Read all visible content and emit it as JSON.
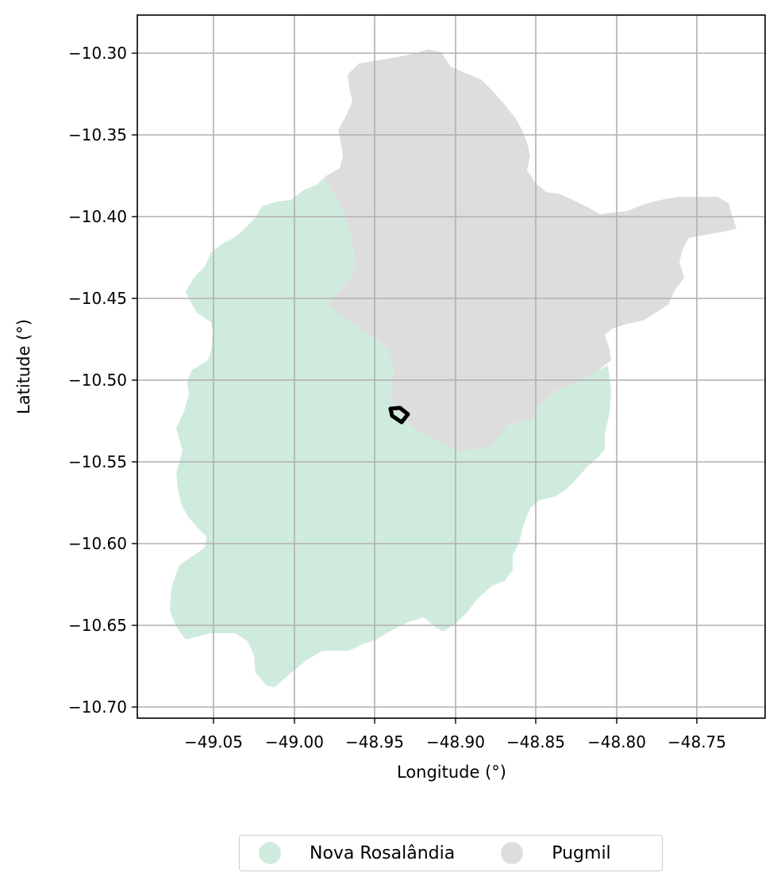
{
  "map": {
    "x_axis": {
      "label": "Longitude (°)",
      "ticks": [
        "−49.05",
        "−49.00",
        "−48.95",
        "−48.90",
        "−48.85",
        "−48.80",
        "−48.75"
      ]
    },
    "y_axis": {
      "label": "Latitude (°)",
      "ticks": [
        "−10.30",
        "−10.35",
        "−10.40",
        "−10.45",
        "−10.50",
        "−10.55",
        "−10.60",
        "−10.65",
        "−10.70"
      ]
    },
    "regions": [
      {
        "name": "Nova Rosalândia",
        "color": "#cfebdd"
      },
      {
        "name": "Pugmil",
        "color": "#dddddd"
      }
    ],
    "highlight_outline_color": "#000000"
  },
  "legend": {
    "items": [
      {
        "label": "Nova Rosalândia",
        "color": "#cfebdd"
      },
      {
        "label": "Pugmil",
        "color": "#dddddd"
      }
    ]
  }
}
